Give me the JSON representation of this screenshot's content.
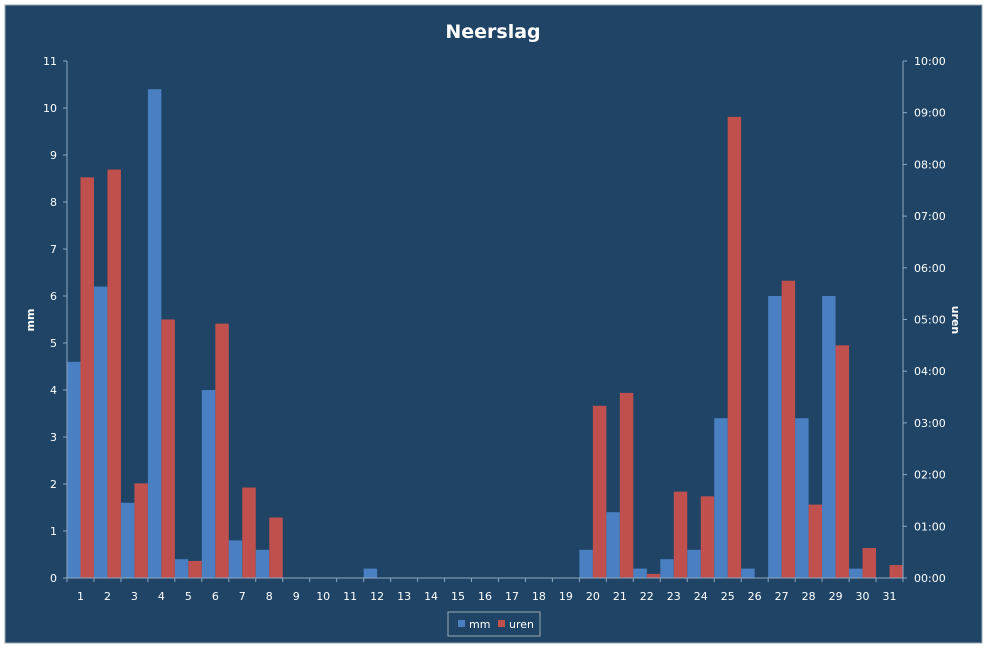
{
  "colors": {
    "background": "#1f4466",
    "mm": "#4a7fc1",
    "uren": "#c0504d",
    "axis": "#8fa8c0",
    "text": "#ffffff"
  },
  "chart_data": {
    "type": "bar",
    "title": "Neerslag",
    "xlabel": "",
    "ylabel": "mm",
    "y2label": "uren",
    "ylim": [
      0,
      11
    ],
    "y2lim": [
      "00:00",
      "10:00"
    ],
    "grid": false,
    "legend_position": "bottom",
    "categories": [
      "1",
      "2",
      "3",
      "4",
      "5",
      "6",
      "7",
      "8",
      "9",
      "10",
      "11",
      "12",
      "13",
      "14",
      "15",
      "16",
      "17",
      "18",
      "19",
      "20",
      "21",
      "22",
      "23",
      "24",
      "25",
      "26",
      "27",
      "28",
      "29",
      "30",
      "31"
    ],
    "y_ticks": [
      "0",
      "1",
      "2",
      "3",
      "4",
      "5",
      "6",
      "7",
      "8",
      "9",
      "10",
      "11"
    ],
    "y2_ticks": [
      "00:00",
      "01:00",
      "02:00",
      "03:00",
      "04:00",
      "05:00",
      "06:00",
      "07:00",
      "08:00",
      "09:00",
      "10:00"
    ],
    "series": [
      {
        "name": "mm",
        "axis": "left",
        "values": [
          4.6,
          6.2,
          1.6,
          10.4,
          0.4,
          4.0,
          0.8,
          0.6,
          0,
          0,
          0,
          0.2,
          0,
          0,
          0,
          0,
          0,
          0,
          0,
          0.6,
          1.4,
          0.2,
          0.4,
          0.6,
          3.4,
          0.2,
          6.0,
          3.4,
          6.0,
          0.2,
          0
        ]
      },
      {
        "name": "uren",
        "axis": "right",
        "unit": "hours",
        "values": [
          7.75,
          7.9,
          1.83,
          5.0,
          0.33,
          4.92,
          1.75,
          1.17,
          0,
          0,
          0,
          0,
          0,
          0,
          0,
          0,
          0,
          0,
          0,
          3.33,
          3.58,
          0.08,
          1.67,
          1.58,
          8.92,
          0,
          5.75,
          1.42,
          4.5,
          0.58,
          0.25
        ]
      }
    ]
  }
}
